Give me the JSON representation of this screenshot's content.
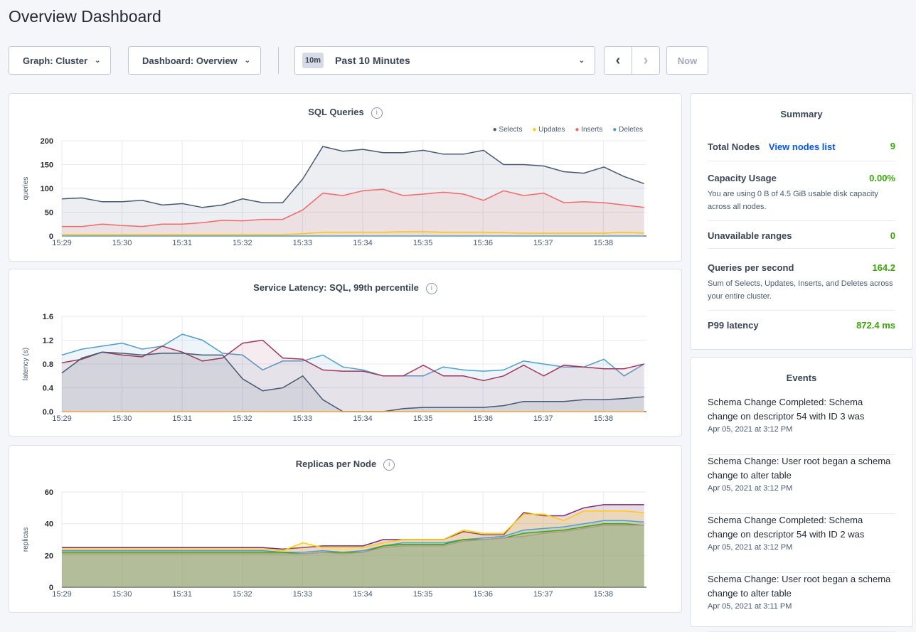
{
  "page_title": "Overview Dashboard",
  "toolbar": {
    "graph": "Graph: Cluster",
    "dashboard": "Dashboard: Overview",
    "time_badge": "10m",
    "time_range": "Past 10 Minutes",
    "now": "Now"
  },
  "summary": {
    "title": "Summary",
    "rows": [
      {
        "label": "Total Nodes",
        "link": "View nodes list",
        "value": "9"
      },
      {
        "label": "Capacity Usage",
        "value": "0.00%",
        "desc": "You are using 0 B of 4.5 GiB usable disk capacity across all nodes."
      },
      {
        "label": "Unavailable ranges",
        "value": "0"
      },
      {
        "label": "Queries per second",
        "value": "164.2",
        "desc": "Sum of Selects, Updates, Inserts, and Deletes across your entire cluster."
      },
      {
        "label": "P99 latency",
        "value": "872.4 ms"
      }
    ]
  },
  "events": {
    "title": "Events",
    "items": [
      {
        "text": "Schema Change Completed: Schema change on descriptor 54 with ID 3 was",
        "date": "Apr 05, 2021 at 3:12 PM"
      },
      {
        "text": "Schema Change: User root began a schema change to alter table",
        "date": "Apr 05, 2021 at 3:12 PM"
      },
      {
        "text": "Schema Change Completed: Schema change on descriptor 54 with ID 2 was",
        "date": "Apr 05, 2021 at 3:12 PM"
      },
      {
        "text": "Schema Change: User root began a schema change to alter table",
        "date": "Apr 05, 2021 at 3:11 PM"
      }
    ]
  },
  "chart_data": [
    {
      "type": "area",
      "title": "SQL Queries",
      "ylabel": "queries",
      "ylim": [
        0,
        200
      ],
      "yticks": [
        "0",
        "50",
        "100",
        "150",
        "200"
      ],
      "xticks": [
        "15:29",
        "15:30",
        "15:31",
        "15:32",
        "15:33",
        "15:34",
        "15:35",
        "15:36",
        "15:37",
        "15:38"
      ],
      "grid": true,
      "legend": "top-right",
      "series": [
        {
          "name": "Selects",
          "color": "#475872",
          "values": [
            78,
            80,
            72,
            72,
            75,
            65,
            68,
            60,
            65,
            78,
            70,
            70,
            120,
            188,
            178,
            182,
            175,
            175,
            180,
            172,
            172,
            180,
            150,
            150,
            147,
            135,
            132,
            145,
            125,
            110
          ]
        },
        {
          "name": "Updates",
          "color": "#ffcd02",
          "values": [
            3,
            3,
            3,
            3,
            3,
            3,
            3,
            3,
            3,
            3,
            3,
            3,
            5,
            8,
            8,
            8,
            8,
            9,
            9,
            8,
            8,
            8,
            7,
            6,
            6,
            6,
            6,
            6,
            8,
            6
          ]
        },
        {
          "name": "Inserts",
          "color": "#f16969",
          "values": [
            20,
            20,
            25,
            22,
            20,
            25,
            25,
            28,
            33,
            32,
            35,
            35,
            55,
            90,
            85,
            95,
            98,
            85,
            88,
            92,
            88,
            75,
            95,
            85,
            90,
            70,
            72,
            70,
            65,
            60
          ]
        },
        {
          "name": "Deletes",
          "color": "#4e9fd1",
          "values": [
            0,
            0,
            0,
            0,
            0,
            0,
            0,
            0,
            0,
            0,
            0,
            0,
            0,
            0,
            0,
            0,
            0,
            0,
            0,
            0,
            0,
            0,
            0,
            0,
            0,
            0,
            0,
            0,
            0,
            0
          ]
        }
      ]
    },
    {
      "type": "area",
      "title": "Service Latency: SQL, 99th percentile",
      "ylabel": "latency (s)",
      "ylim": [
        0,
        1.6
      ],
      "yticks": [
        "0.0",
        "0.4",
        "0.8",
        "1.2",
        "1.6"
      ],
      "xticks": [
        "15:29",
        "15:30",
        "15:31",
        "15:32",
        "15:33",
        "15:34",
        "15:35",
        "15:36",
        "15:37",
        "15:38"
      ],
      "grid": true,
      "series": [
        {
          "color": "#4e9fd1",
          "values": [
            0.95,
            1.05,
            1.1,
            1.15,
            1.05,
            1.1,
            1.3,
            1.2,
            0.98,
            0.95,
            0.7,
            0.85,
            0.85,
            0.95,
            0.75,
            0.7,
            0.6,
            0.6,
            0.6,
            0.75,
            0.7,
            0.68,
            0.7,
            0.85,
            0.8,
            0.75,
            0.75,
            0.88,
            0.6,
            0.8
          ]
        },
        {
          "color": "#a3365a",
          "values": [
            0.82,
            0.88,
            1.0,
            0.95,
            0.92,
            1.1,
            1.0,
            0.85,
            0.9,
            1.15,
            1.2,
            0.9,
            0.88,
            0.7,
            0.68,
            0.68,
            0.6,
            0.6,
            0.78,
            0.6,
            0.6,
            0.52,
            0.6,
            0.78,
            0.6,
            0.78,
            0.75,
            0.72,
            0.72,
            0.8
          ]
        },
        {
          "color": "#475872",
          "values": [
            0.65,
            0.9,
            1.0,
            0.98,
            0.95,
            0.98,
            0.98,
            0.95,
            0.95,
            0.55,
            0.35,
            0.4,
            0.6,
            0.2,
            0,
            0,
            0,
            0.05,
            0.07,
            0.07,
            0.07,
            0.07,
            0.1,
            0.17,
            0.17,
            0.17,
            0.2,
            0.2,
            0.22,
            0.25
          ]
        },
        {
          "color": "#f3a33b",
          "values": [
            0,
            0,
            0,
            0,
            0,
            0,
            0,
            0,
            0,
            0,
            0,
            0,
            0,
            0,
            0,
            0,
            0,
            0,
            0,
            0,
            0,
            0,
            0,
            0,
            0,
            0,
            0,
            0,
            0,
            0
          ]
        }
      ]
    },
    {
      "type": "area",
      "title": "Replicas per Node",
      "ylabel": "replicas",
      "ylim": [
        0,
        60
      ],
      "yticks": [
        "0",
        "20",
        "40",
        "60"
      ],
      "xticks": [
        "15:29",
        "15:30",
        "15:31",
        "15:32",
        "15:33",
        "15:34",
        "15:35",
        "15:36",
        "15:37",
        "15:38"
      ],
      "grid": true,
      "series": [
        {
          "color": "#7a2a72",
          "values": [
            25,
            25,
            25,
            25,
            25,
            25,
            25,
            25,
            25,
            25,
            25,
            24,
            25,
            26,
            26,
            26,
            30,
            30,
            30,
            30,
            35,
            33,
            33,
            47,
            45,
            45,
            50,
            52,
            52,
            52
          ]
        },
        {
          "color": "#ffcd02",
          "values": [
            24,
            24,
            24,
            24,
            24,
            24,
            24,
            24,
            24,
            24,
            24,
            23,
            28,
            25,
            25,
            25,
            28,
            30,
            30,
            30,
            36,
            34,
            34,
            46,
            46,
            42,
            48,
            48,
            48,
            47
          ]
        },
        {
          "color": "#4e9fd1",
          "values": [
            23,
            23,
            23,
            23,
            23,
            23,
            23,
            23,
            23,
            23,
            23,
            22,
            22,
            23,
            22,
            23,
            26,
            28,
            28,
            28,
            30,
            31,
            32,
            36,
            37,
            38,
            40,
            42,
            42,
            41
          ]
        },
        {
          "color": "#37a806",
          "values": [
            22,
            22,
            22,
            22,
            22,
            22,
            22,
            22,
            22,
            22,
            22,
            22,
            21,
            22,
            22,
            22,
            26,
            27,
            27,
            27,
            30,
            30,
            31,
            34,
            35,
            36,
            38,
            40,
            40,
            39
          ]
        },
        {
          "color": "#b7978d",
          "values": [
            21,
            21,
            21,
            21,
            21,
            21,
            21,
            21,
            21,
            21,
            21,
            21,
            21,
            22,
            21,
            22,
            25,
            26,
            26,
            26,
            29,
            30,
            31,
            32,
            34,
            35,
            37,
            39,
            39,
            39
          ]
        }
      ]
    }
  ]
}
